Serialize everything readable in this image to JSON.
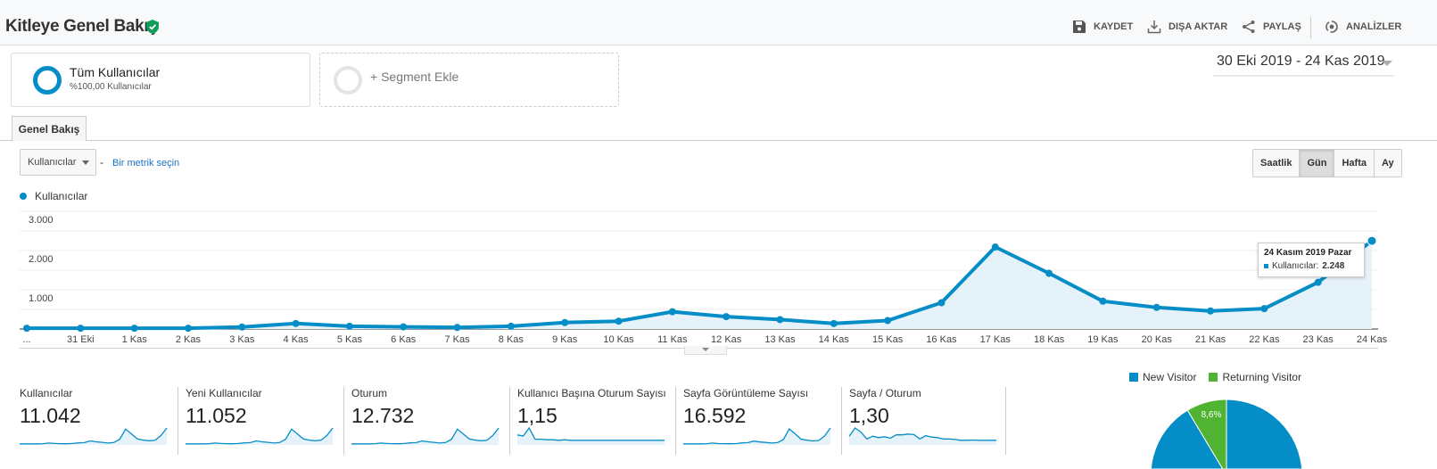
{
  "header": {
    "title": "Kitleye Genel Bakış",
    "actions": [
      {
        "label": "KAYDET",
        "icon": "save-icon"
      },
      {
        "label": "DIŞA AKTAR",
        "icon": "download-icon"
      },
      {
        "label": "PAYLAŞ",
        "icon": "share-icon"
      },
      {
        "label": "ANALİZLER",
        "icon": "insights-icon"
      }
    ]
  },
  "segments": {
    "active": {
      "name": "Tüm Kullanıcılar",
      "sub": "%100,00 Kullanıcılar"
    },
    "add_label": "+ Segment Ekle"
  },
  "date_range": "30 Eki 2019 - 24 Kas 2019",
  "tab": "Genel Bakış",
  "metric_select": "Kullanıcılar",
  "metric_dash": "-",
  "pick_metric": "Bir metrik seçin",
  "granularity": [
    {
      "label": "Saatlik",
      "active": false
    },
    {
      "label": "Gün",
      "active": true
    },
    {
      "label": "Hafta",
      "active": false
    },
    {
      "label": "Ay",
      "active": false
    }
  ],
  "colors": {
    "accent": "#058dc7",
    "green": "#50b432",
    "fill": "#e6f2f9"
  },
  "chart_data": {
    "type": "area",
    "legend": "Kullanıcılar",
    "ylim": [
      0,
      3000
    ],
    "yticks": [
      "3.000",
      "2.000",
      "1.000"
    ],
    "ytick_values": [
      3000,
      2000,
      1000
    ],
    "xticks": [
      "...",
      "31 Eki",
      "1 Kas",
      "2 Kas",
      "3 Kas",
      "4 Kas",
      "5 Kas",
      "6 Kas",
      "7 Kas",
      "8 Kas",
      "9 Kas",
      "10 Kas",
      "11 Kas",
      "12 Kas",
      "13 Kas",
      "14 Kas",
      "15 Kas",
      "16 Kas",
      "17 Kas",
      "18 Kas",
      "19 Kas",
      "20 Kas",
      "21 Kas",
      "22 Kas",
      "23 Kas",
      "24 Kas"
    ],
    "values": [
      20,
      20,
      20,
      20,
      50,
      140,
      70,
      55,
      40,
      70,
      165,
      200,
      440,
      315,
      240,
      140,
      215,
      670,
      2090,
      1420,
      710,
      550,
      460,
      520,
      1190,
      2248
    ],
    "tooltip": {
      "title": "24 Kasım 2019 Pazar",
      "label": "Kullanıcılar:",
      "value": "2.248"
    }
  },
  "metrics": [
    {
      "label": "Kullanıcılar",
      "value": "11.042",
      "spark": [
        20,
        20,
        20,
        20,
        50,
        140,
        70,
        55,
        40,
        70,
        165,
        200,
        440,
        315,
        240,
        140,
        215,
        670,
        2090,
        1420,
        710,
        550,
        460,
        520,
        1190,
        2248
      ]
    },
    {
      "label": "Yeni Kullanıcılar",
      "value": "11.052",
      "spark": [
        20,
        20,
        20,
        20,
        50,
        140,
        70,
        55,
        40,
        70,
        165,
        200,
        440,
        315,
        240,
        140,
        215,
        670,
        2090,
        1420,
        710,
        550,
        460,
        520,
        1190,
        2248
      ]
    },
    {
      "label": "Oturum",
      "value": "12.732",
      "spark": [
        25,
        25,
        25,
        25,
        60,
        160,
        80,
        60,
        45,
        80,
        190,
        230,
        500,
        360,
        280,
        160,
        250,
        780,
        2400,
        1630,
        820,
        640,
        530,
        600,
        1370,
        2590
      ]
    },
    {
      "label": "Kullanıcı Başına Oturum Sayısı",
      "value": "1,15",
      "spark": [
        1.22,
        1.2,
        1.35,
        1.14,
        1.14,
        1.13,
        1.13,
        1.12,
        1.13,
        1.12,
        1.12,
        1.12,
        1.12,
        1.12,
        1.12,
        1.12,
        1.12,
        1.12,
        1.12,
        1.12,
        1.12,
        1.12,
        1.12,
        1.12,
        1.12,
        1.12
      ]
    },
    {
      "label": "Sayfa Görüntüleme Sayısı",
      "value": "16.592",
      "spark": [
        30,
        30,
        30,
        30,
        70,
        200,
        100,
        80,
        60,
        100,
        230,
        300,
        600,
        420,
        330,
        200,
        290,
        900,
        3100,
        2100,
        1000,
        780,
        650,
        740,
        1650,
        3300
      ]
    },
    {
      "label": "Sayfa / Oturum",
      "value": "1,30",
      "spark": [
        1.4,
        1.7,
        1.55,
        1.3,
        1.4,
        1.35,
        1.38,
        1.33,
        1.45,
        1.45,
        1.48,
        1.46,
        1.3,
        1.42,
        1.37,
        1.35,
        1.3,
        1.3,
        1.28,
        1.25,
        1.25,
        1.26,
        1.25,
        1.25,
        1.25,
        1.25
      ]
    }
  ],
  "pie": {
    "legend": [
      {
        "label": "New Visitor"
      },
      {
        "label": "Returning Visitor"
      }
    ],
    "values": [
      91.4,
      8.6
    ],
    "returning_label": "8,6%"
  }
}
